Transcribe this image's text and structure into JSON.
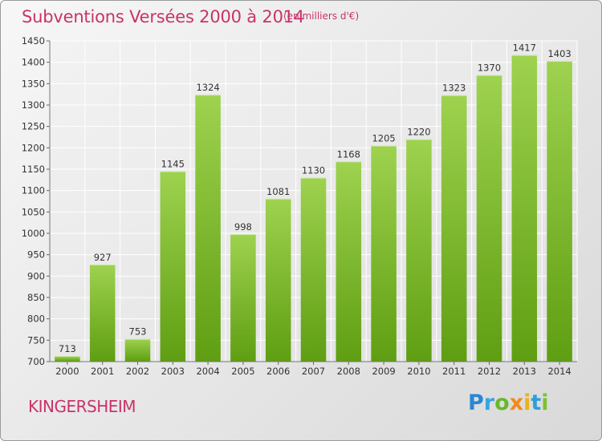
{
  "header": {
    "title": "Subventions Versées 2000 à 2014",
    "unit_note": "(en milliers d'€)"
  },
  "footer": {
    "city": "KINGERSHEIM",
    "logo": "Proxiti"
  },
  "colors": {
    "accent": "#c8336a",
    "bar_top": "#9ed24f",
    "bar_bottom": "#5f9e12"
  },
  "chart_data": {
    "type": "bar",
    "title": "Subventions Versées 2000 à 2014",
    "subtitle": "(en milliers d'€)",
    "xlabel": "",
    "ylabel": "",
    "categories": [
      "2000",
      "2001",
      "2002",
      "2003",
      "2004",
      "2005",
      "2006",
      "2007",
      "2008",
      "2009",
      "2010",
      "2011",
      "2012",
      "2013",
      "2014"
    ],
    "values": [
      713,
      927,
      753,
      1145,
      1324,
      998,
      1081,
      1130,
      1168,
      1205,
      1220,
      1323,
      1370,
      1417,
      1403
    ],
    "ylim": [
      700,
      1450
    ],
    "yticks": [
      700,
      750,
      800,
      850,
      900,
      950,
      1000,
      1050,
      1100,
      1150,
      1200,
      1250,
      1300,
      1350,
      1400,
      1450
    ],
    "grid": true,
    "legend": "none"
  }
}
